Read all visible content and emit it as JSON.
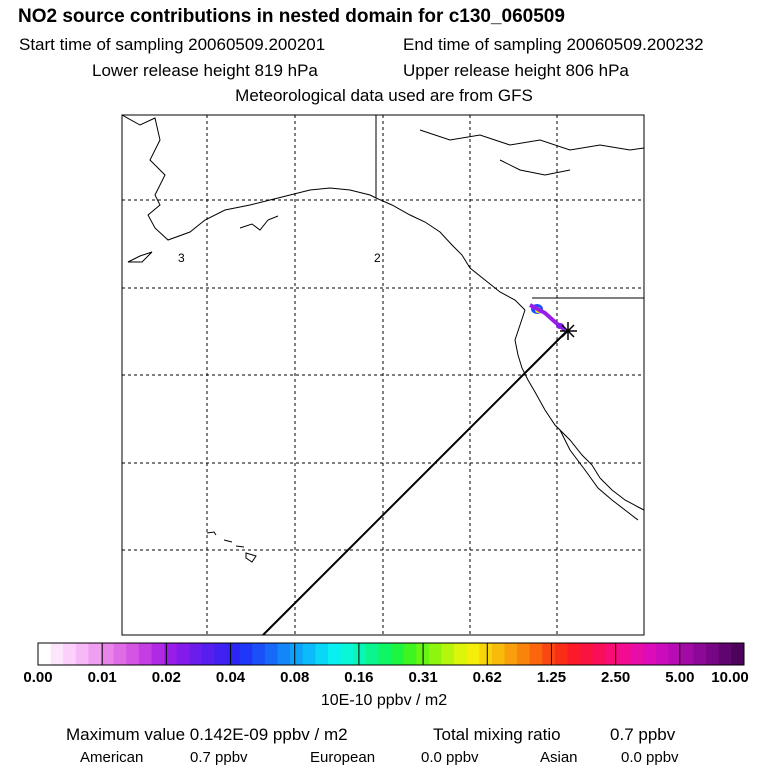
{
  "header": {
    "title": "NO2 source contributions in nested domain for c130_060509",
    "start": "Start time of sampling 20060509.200201",
    "end": "End time of sampling 20060509.200232",
    "lower": "Lower release height  819 hPa",
    "upper": "Upper release height  806 hPa",
    "met": "Meteorological data used are from GFS"
  },
  "map": {
    "region_labels": [
      "3",
      "2"
    ],
    "coastline_color": "#000000",
    "grid_style": "dashed"
  },
  "colorbar": {
    "labels": [
      "0.00",
      "0.01",
      "0.02",
      "0.04",
      "0.08",
      "0.16",
      "0.31",
      "0.62",
      "1.25",
      "2.50",
      "5.00",
      "10.00"
    ],
    "colors": [
      "#ffffff",
      "#fde6fc",
      "#fbd0fa",
      "#f7b8f6",
      "#f09ef0",
      "#e884ea",
      "#df6ce6",
      "#d455e4",
      "#c53ee4",
      "#b02ae6",
      "#9a1ce9",
      "#841bec",
      "#6c1ced",
      "#561ff0",
      "#4021f2",
      "#2c26f5",
      "#1f38f7",
      "#1b50f8",
      "#176af9",
      "#1386fa",
      "#0fa2fa",
      "#0cbcfa",
      "#0ad6f7",
      "#0aeff2",
      "#0af6d8",
      "#0af6b4",
      "#0af58e",
      "#0ef566",
      "#1ef540",
      "#3ef520",
      "#66f514",
      "#8ef50e",
      "#b6f50c",
      "#dcf50a",
      "#f5ee0a",
      "#f7d50a",
      "#f8bb0a",
      "#f99f0b",
      "#fa830c",
      "#fa650e",
      "#fa4812",
      "#fa2d18",
      "#fa1a28",
      "#fa1240",
      "#fa0e5a",
      "#f80c76",
      "#f20c90",
      "#e80ca8",
      "#dc0cb8",
      "#cc0cbc",
      "#b80bb4",
      "#a20aa6",
      "#8c0896",
      "#760684",
      "#600470",
      "#4c035c"
    ]
  },
  "units": "10E-10 ppbv / m2",
  "summary": {
    "max_value": "Maximum value  0.142E-09 ppbv / m2",
    "total_label": "Total mixing ratio",
    "total_value": "0.7 ppbv"
  },
  "sources": [
    {
      "name": "American",
      "value": "0.7 ppbv"
    },
    {
      "name": "European",
      "value": "0.0 ppbv"
    },
    {
      "name": "Asian",
      "value": "0.0 ppbv"
    }
  ]
}
